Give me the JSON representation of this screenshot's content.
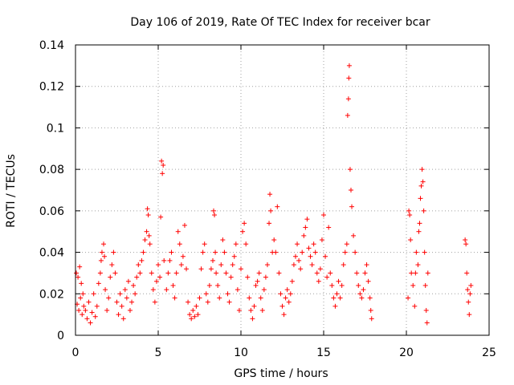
{
  "chart_data": {
    "type": "scatter",
    "title": "Day 106 of 2019, Rate Of TEC Index for receiver bcar",
    "xlabel": "GPS time / hours",
    "ylabel": "ROTI / TECUs",
    "xlim": [
      0,
      25
    ],
    "ylim": [
      0,
      0.14
    ],
    "xticks": [
      0,
      5,
      10,
      15,
      20,
      25
    ],
    "xtick_labels": [
      "0",
      "5",
      "10",
      "15",
      "20",
      "25"
    ],
    "yticks": [
      0,
      0.02,
      0.04,
      0.06,
      0.08,
      0.1,
      0.12,
      0.14
    ],
    "ytick_labels": [
      "0",
      "0.02",
      "0.04",
      "0.06",
      "0.08",
      "0.1",
      "0.12",
      "0.14"
    ],
    "grid": true,
    "marker": "+",
    "color": "#ff0000",
    "series": [
      {
        "name": "ROTI",
        "points": [
          [
            0.05,
            0.03
          ],
          [
            0.1,
            0.015
          ],
          [
            0.15,
            0.028
          ],
          [
            0.2,
            0.012
          ],
          [
            0.25,
            0.033
          ],
          [
            0.3,
            0.018
          ],
          [
            0.35,
            0.025
          ],
          [
            0.4,
            0.01
          ],
          [
            0.45,
            0.02
          ],
          [
            0.5,
            0.014
          ],
          [
            0.6,
            0.012
          ],
          [
            0.7,
            0.008
          ],
          [
            0.8,
            0.016
          ],
          [
            0.9,
            0.006
          ],
          [
            1.0,
            0.011
          ],
          [
            1.1,
            0.02
          ],
          [
            1.2,
            0.009
          ],
          [
            1.3,
            0.014
          ],
          [
            1.4,
            0.025
          ],
          [
            1.5,
            0.03
          ],
          [
            1.55,
            0.036
          ],
          [
            1.6,
            0.04
          ],
          [
            1.7,
            0.044
          ],
          [
            1.75,
            0.038
          ],
          [
            1.8,
            0.022
          ],
          [
            1.9,
            0.012
          ],
          [
            2.0,
            0.018
          ],
          [
            2.1,
            0.028
          ],
          [
            2.2,
            0.034
          ],
          [
            2.3,
            0.04
          ],
          [
            2.4,
            0.03
          ],
          [
            2.5,
            0.016
          ],
          [
            2.6,
            0.01
          ],
          [
            2.7,
            0.02
          ],
          [
            2.8,
            0.014
          ],
          [
            2.9,
            0.008
          ],
          [
            3.0,
            0.022
          ],
          [
            3.1,
            0.018
          ],
          [
            3.2,
            0.026
          ],
          [
            3.3,
            0.012
          ],
          [
            3.4,
            0.016
          ],
          [
            3.5,
            0.024
          ],
          [
            3.6,
            0.02
          ],
          [
            3.7,
            0.028
          ],
          [
            3.8,
            0.034
          ],
          [
            3.9,
            0.03
          ],
          [
            4.0,
            0.036
          ],
          [
            4.1,
            0.04
          ],
          [
            4.2,
            0.046
          ],
          [
            4.3,
            0.05
          ],
          [
            4.35,
            0.061
          ],
          [
            4.4,
            0.058
          ],
          [
            4.45,
            0.048
          ],
          [
            4.5,
            0.044
          ],
          [
            4.6,
            0.03
          ],
          [
            4.7,
            0.022
          ],
          [
            4.8,
            0.016
          ],
          [
            4.9,
            0.026
          ],
          [
            5.0,
            0.034
          ],
          [
            5.1,
            0.028
          ],
          [
            5.15,
            0.057
          ],
          [
            5.2,
            0.084
          ],
          [
            5.25,
            0.078
          ],
          [
            5.3,
            0.082
          ],
          [
            5.35,
            0.036
          ],
          [
            5.5,
            0.022
          ],
          [
            5.6,
            0.03
          ],
          [
            5.7,
            0.036
          ],
          [
            5.8,
            0.04
          ],
          [
            5.9,
            0.024
          ],
          [
            6.0,
            0.018
          ],
          [
            6.1,
            0.03
          ],
          [
            6.2,
            0.05
          ],
          [
            6.3,
            0.044
          ],
          [
            6.4,
            0.034
          ],
          [
            6.5,
            0.038
          ],
          [
            6.6,
            0.053
          ],
          [
            6.7,
            0.032
          ],
          [
            6.8,
            0.016
          ],
          [
            6.9,
            0.01
          ],
          [
            7.0,
            0.008
          ],
          [
            7.1,
            0.012
          ],
          [
            7.2,
            0.009
          ],
          [
            7.3,
            0.014
          ],
          [
            7.4,
            0.01
          ],
          [
            7.5,
            0.018
          ],
          [
            7.6,
            0.032
          ],
          [
            7.7,
            0.04
          ],
          [
            7.8,
            0.044
          ],
          [
            7.9,
            0.02
          ],
          [
            8.0,
            0.016
          ],
          [
            8.1,
            0.024
          ],
          [
            8.2,
            0.032
          ],
          [
            8.3,
            0.036
          ],
          [
            8.35,
            0.06
          ],
          [
            8.4,
            0.058
          ],
          [
            8.45,
            0.04
          ],
          [
            8.5,
            0.03
          ],
          [
            8.6,
            0.024
          ],
          [
            8.7,
            0.018
          ],
          [
            8.8,
            0.034
          ],
          [
            8.9,
            0.046
          ],
          [
            9.0,
            0.04
          ],
          [
            9.1,
            0.03
          ],
          [
            9.2,
            0.02
          ],
          [
            9.3,
            0.016
          ],
          [
            9.4,
            0.028
          ],
          [
            9.5,
            0.034
          ],
          [
            9.6,
            0.038
          ],
          [
            9.7,
            0.044
          ],
          [
            9.8,
            0.022
          ],
          [
            9.9,
            0.012
          ],
          [
            10.0,
            0.032
          ],
          [
            10.1,
            0.05
          ],
          [
            10.2,
            0.054
          ],
          [
            10.3,
            0.044
          ],
          [
            10.4,
            0.028
          ],
          [
            10.5,
            0.018
          ],
          [
            10.6,
            0.012
          ],
          [
            10.7,
            0.008
          ],
          [
            10.8,
            0.014
          ],
          [
            10.9,
            0.024
          ],
          [
            11.0,
            0.026
          ],
          [
            11.1,
            0.03
          ],
          [
            11.2,
            0.018
          ],
          [
            11.3,
            0.012
          ],
          [
            11.4,
            0.022
          ],
          [
            11.5,
            0.028
          ],
          [
            11.6,
            0.034
          ],
          [
            11.7,
            0.054
          ],
          [
            11.75,
            0.068
          ],
          [
            11.8,
            0.06
          ],
          [
            11.9,
            0.04
          ],
          [
            12.0,
            0.046
          ],
          [
            12.1,
            0.04
          ],
          [
            12.2,
            0.062
          ],
          [
            12.3,
            0.03
          ],
          [
            12.4,
            0.02
          ],
          [
            12.5,
            0.014
          ],
          [
            12.6,
            0.01
          ],
          [
            12.7,
            0.018
          ],
          [
            12.8,
            0.022
          ],
          [
            12.9,
            0.016
          ],
          [
            13.0,
            0.02
          ],
          [
            13.1,
            0.026
          ],
          [
            13.2,
            0.034
          ],
          [
            13.3,
            0.038
          ],
          [
            13.4,
            0.044
          ],
          [
            13.5,
            0.036
          ],
          [
            13.6,
            0.032
          ],
          [
            13.7,
            0.04
          ],
          [
            13.8,
            0.048
          ],
          [
            13.9,
            0.052
          ],
          [
            14.0,
            0.056
          ],
          [
            14.1,
            0.042
          ],
          [
            14.2,
            0.038
          ],
          [
            14.3,
            0.034
          ],
          [
            14.4,
            0.044
          ],
          [
            14.5,
            0.04
          ],
          [
            14.6,
            0.03
          ],
          [
            14.7,
            0.026
          ],
          [
            14.8,
            0.032
          ],
          [
            14.9,
            0.046
          ],
          [
            15.0,
            0.058
          ],
          [
            15.1,
            0.038
          ],
          [
            15.2,
            0.028
          ],
          [
            15.3,
            0.052
          ],
          [
            15.4,
            0.03
          ],
          [
            15.5,
            0.024
          ],
          [
            15.6,
            0.018
          ],
          [
            15.7,
            0.014
          ],
          [
            15.8,
            0.02
          ],
          [
            15.9,
            0.026
          ],
          [
            16.0,
            0.018
          ],
          [
            16.1,
            0.024
          ],
          [
            16.2,
            0.034
          ],
          [
            16.3,
            0.04
          ],
          [
            16.4,
            0.044
          ],
          [
            16.45,
            0.106
          ],
          [
            16.5,
            0.114
          ],
          [
            16.52,
            0.124
          ],
          [
            16.55,
            0.13
          ],
          [
            16.6,
            0.08
          ],
          [
            16.65,
            0.07
          ],
          [
            16.7,
            0.062
          ],
          [
            16.8,
            0.048
          ],
          [
            16.9,
            0.04
          ],
          [
            17.0,
            0.03
          ],
          [
            17.1,
            0.024
          ],
          [
            17.2,
            0.02
          ],
          [
            17.3,
            0.018
          ],
          [
            17.4,
            0.022
          ],
          [
            17.5,
            0.03
          ],
          [
            17.6,
            0.034
          ],
          [
            17.7,
            0.026
          ],
          [
            17.8,
            0.018
          ],
          [
            17.85,
            0.012
          ],
          [
            17.9,
            0.008
          ],
          [
            20.1,
            0.018
          ],
          [
            20.15,
            0.06
          ],
          [
            20.2,
            0.058
          ],
          [
            20.25,
            0.046
          ],
          [
            20.3,
            0.03
          ],
          [
            20.4,
            0.024
          ],
          [
            20.5,
            0.014
          ],
          [
            20.55,
            0.03
          ],
          [
            20.6,
            0.04
          ],
          [
            20.7,
            0.034
          ],
          [
            20.75,
            0.05
          ],
          [
            20.8,
            0.054
          ],
          [
            20.85,
            0.066
          ],
          [
            20.9,
            0.072
          ],
          [
            20.95,
            0.08
          ],
          [
            21.0,
            0.074
          ],
          [
            21.05,
            0.06
          ],
          [
            21.1,
            0.04
          ],
          [
            21.15,
            0.024
          ],
          [
            21.2,
            0.012
          ],
          [
            21.25,
            0.006
          ],
          [
            21.3,
            0.03
          ],
          [
            23.55,
            0.046
          ],
          [
            23.6,
            0.044
          ],
          [
            23.65,
            0.03
          ],
          [
            23.7,
            0.022
          ],
          [
            23.75,
            0.016
          ],
          [
            23.8,
            0.01
          ],
          [
            23.85,
            0.02
          ],
          [
            23.9,
            0.024
          ]
        ]
      }
    ]
  }
}
